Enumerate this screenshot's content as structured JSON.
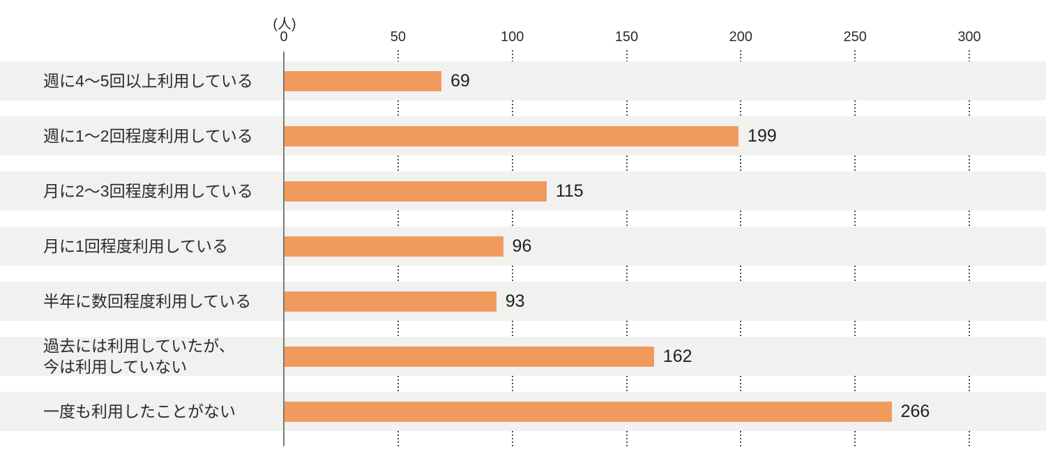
{
  "chart_data": {
    "type": "bar",
    "orientation": "horizontal",
    "title": "",
    "unit_label": "(人)",
    "xlabel": "",
    "ylabel": "",
    "categories": [
      "週に4〜5回以上利用している",
      "週に1〜2回程度利用している",
      "月に2〜3回程度利用している",
      "月に1回程度利用している",
      "半年に数回程度利用している",
      "過去には利用していたが、\n今は利用していない",
      "一度も利用したことがない"
    ],
    "values": [
      69,
      199,
      115,
      96,
      93,
      162,
      266
    ],
    "xlim": [
      0,
      300
    ],
    "xticks": [
      0,
      50,
      100,
      150,
      200,
      250,
      300
    ],
    "grid": "dotted-vertical-in-gaps",
    "legend": "none",
    "colors": {
      "bar": "#f09a5e",
      "row_band": "#f1f1f0",
      "text": "#2b2b2b",
      "axis_line": "#7a7a78",
      "grid_dots": "#4b4b4b",
      "background": "#ffffff"
    }
  }
}
